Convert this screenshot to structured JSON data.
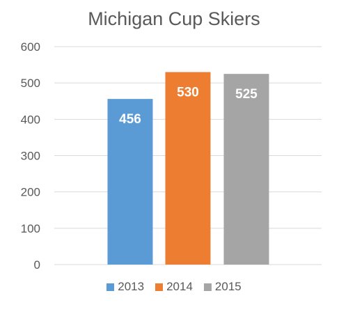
{
  "chart_data": {
    "type": "bar",
    "title": "Michigan Cup Skiers",
    "categories": [
      "2013",
      "2014",
      "2015"
    ],
    "values": [
      456,
      530,
      525
    ],
    "colors": [
      "#5b9bd5",
      "#ed7d31",
      "#a5a5a5"
    ],
    "ylim": [
      0,
      600
    ],
    "yticks": [
      0,
      100,
      200,
      300,
      400,
      500,
      600
    ],
    "grid": true,
    "legend_position": "bottom",
    "data_labels": "inside-end"
  }
}
